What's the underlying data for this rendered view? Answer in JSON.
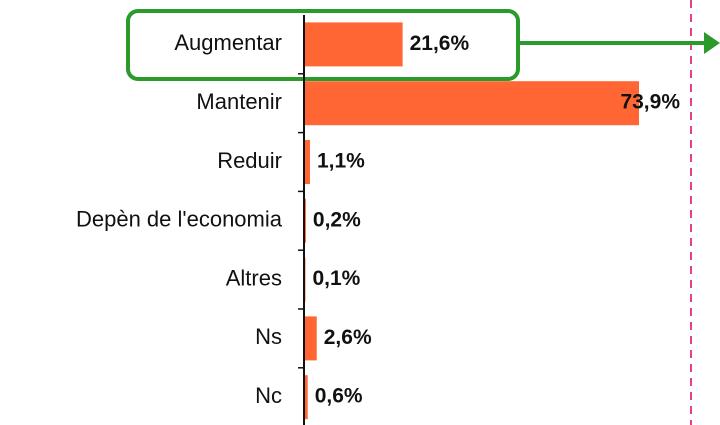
{
  "chart_data": {
    "type": "hbar",
    "categories": [
      "Augmentar",
      "Mantenir",
      "Reduir",
      "Depèn de l'economia",
      "Altres",
      "Ns",
      "Nc"
    ],
    "values": [
      21.6,
      73.9,
      1.1,
      0.2,
      0.1,
      2.6,
      0.6
    ],
    "value_labels": [
      "21,6%",
      "73,9%",
      "1,1%",
      "0,2%",
      "0,1%",
      "2,6%",
      "0,6%"
    ],
    "color": "#ff6633"
  }
}
